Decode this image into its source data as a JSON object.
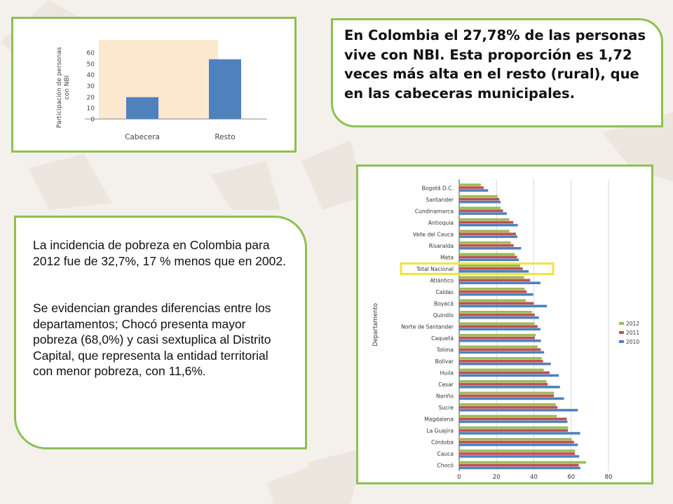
{
  "colors": {
    "frame_border": "#8dc052",
    "bar_blue": "#4f81bd",
    "bar_red": "#c0504d",
    "bar_green": "#9bbb59",
    "highlight_yellow": "#f0e43a",
    "plot_area": "#fbe8cf"
  },
  "summary_nbi": "En Colombia el 27,78% de las personas vive con NBI. Esta proporción es 1,72 veces más alta en el resto (rural), que en las cabeceras municipales.",
  "summary_pobreza": {
    "p1": "La incidencia de pobreza en Colombia para 2012 fue de 32,7%, 17 % menos que en 2002.",
    "p2": "Se evidencian grandes diferencias entre los departamentos; Chocó presenta mayor pobreza (68,0%) y casi sextuplica al Distrito Capital, que representa la entidad territorial con menor pobreza, con 11,6%."
  },
  "chart_data": [
    {
      "type": "bar",
      "categories": [
        "Cabecera",
        "Resto"
      ],
      "values": [
        19.7,
        53.9
      ],
      "ylabel": "Participación de personas con NBI",
      "xlabel": "",
      "ylim": [
        0,
        60
      ],
      "yticks": [
        0,
        10,
        20,
        30,
        40,
        50,
        60
      ],
      "grid": false
    },
    {
      "type": "bar",
      "orientation": "horizontal",
      "ylabel": "Departamento",
      "xlim": [
        0,
        80
      ],
      "xticks": [
        0,
        20,
        40,
        60,
        80
      ],
      "legend_position": "right",
      "highlight": "Total Nacional",
      "categories": [
        "Bogotá D.C.",
        "Santander",
        "Cundinamarca",
        "Antioquia",
        "Valle del Cauca",
        "Risaralda",
        "Meta",
        "Total Nacional",
        "Atlántico",
        "Caldas",
        "Boyacá",
        "Quindío",
        "Norte de Santander",
        "Caquetá",
        "Tolima",
        "Bolívar",
        "Huila",
        "Cesar",
        "Nariño",
        "Sucre",
        "Magdalena",
        "La Guajira",
        "Córdoba",
        "Cauca",
        "Chocó"
      ],
      "series": [
        {
          "name": "2012",
          "values": [
            11.6,
            20.6,
            22.1,
            26.8,
            26.9,
            27.7,
            29.7,
            32.7,
            34.8,
            35.1,
            35.6,
            39.0,
            40.4,
            41.0,
            42.0,
            44.2,
            45.3,
            46.8,
            50.8,
            51.7,
            52.3,
            58.4,
            60.2,
            62.1,
            68.0
          ]
        },
        {
          "name": "2011",
          "values": [
            13.1,
            21.5,
            23.5,
            29.0,
            30.4,
            29.2,
            31.0,
            34.1,
            38.0,
            36.2,
            39.9,
            40.5,
            42.0,
            40.5,
            43.7,
            44.9,
            48.4,
            47.4,
            50.7,
            52.6,
            57.6,
            58.3,
            61.5,
            62.0,
            64.0
          ]
        },
        {
          "name": "2010",
          "values": [
            15.5,
            22.2,
            25.5,
            31.4,
            31.2,
            33.2,
            32.0,
            37.2,
            43.5,
            39.7,
            47.0,
            42.7,
            43.5,
            43.8,
            45.5,
            49.1,
            53.4,
            54.0,
            56.2,
            63.6,
            58.0,
            64.8,
            63.6,
            64.3,
            64.9
          ]
        }
      ]
    }
  ]
}
